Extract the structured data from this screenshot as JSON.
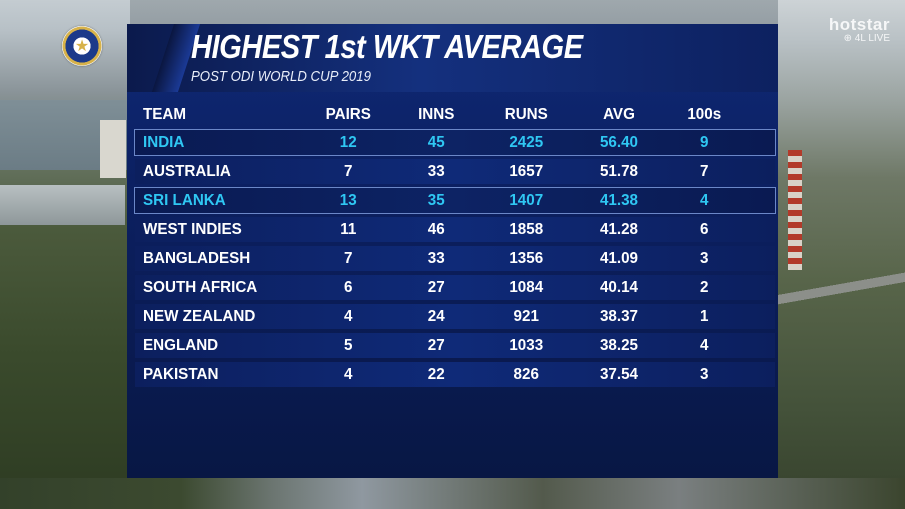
{
  "branding": {
    "watermark_name": "hotstar",
    "watermark_live": "⊕ 4L LIVE"
  },
  "panel": {
    "title": "HIGHEST 1st WKT AVERAGE",
    "subtitle": "POST ODI WORLD CUP 2019"
  },
  "table": {
    "headers": [
      "TEAM",
      "PAIRS",
      "INNS",
      "RUNS",
      "AVG",
      "100s"
    ],
    "rows": [
      {
        "team": "INDIA",
        "pairs": "12",
        "inns": "45",
        "runs": "2425",
        "avg": "56.40",
        "hundreds": "9",
        "highlight": true
      },
      {
        "team": "AUSTRALIA",
        "pairs": "7",
        "inns": "33",
        "runs": "1657",
        "avg": "51.78",
        "hundreds": "7",
        "highlight": false
      },
      {
        "team": "SRI LANKA",
        "pairs": "13",
        "inns": "35",
        "runs": "1407",
        "avg": "41.38",
        "hundreds": "4",
        "highlight": true
      },
      {
        "team": "WEST INDIES",
        "pairs": "11",
        "inns": "46",
        "runs": "1858",
        "avg": "41.28",
        "hundreds": "6",
        "highlight": false
      },
      {
        "team": "BANGLADESH",
        "pairs": "7",
        "inns": "33",
        "runs": "1356",
        "avg": "41.09",
        "hundreds": "3",
        "highlight": false
      },
      {
        "team": "SOUTH AFRICA",
        "pairs": "6",
        "inns": "27",
        "runs": "1084",
        "avg": "40.14",
        "hundreds": "2",
        "highlight": false
      },
      {
        "team": "NEW ZEALAND",
        "pairs": "4",
        "inns": "24",
        "runs": "921",
        "avg": "38.37",
        "hundreds": "1",
        "highlight": false
      },
      {
        "team": "ENGLAND",
        "pairs": "5",
        "inns": "27",
        "runs": "1033",
        "avg": "38.25",
        "hundreds": "4",
        "highlight": false
      },
      {
        "team": "PAKISTAN",
        "pairs": "4",
        "inns": "22",
        "runs": "826",
        "avg": "37.54",
        "hundreds": "3",
        "highlight": false
      }
    ]
  },
  "colors": {
    "highlight_text": "#2fc7f3",
    "panel_blue": "#0f2a78"
  }
}
